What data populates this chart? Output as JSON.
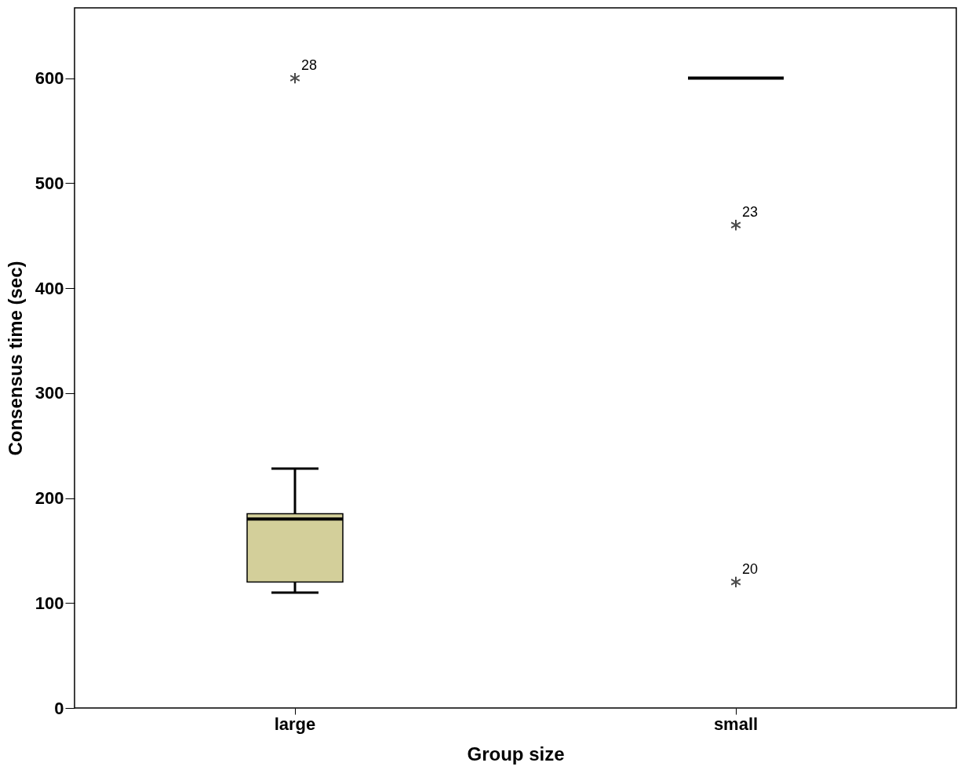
{
  "chart_data": {
    "type": "box",
    "xlabel": "Group size",
    "ylabel": "Consensus time (sec)",
    "categories": [
      "large",
      "small"
    ],
    "boxes": [
      {
        "low": 110,
        "q1": 120,
        "median": 180,
        "q3": 185,
        "high": 228,
        "outliers": [
          600
        ]
      },
      {
        "low": 600,
        "q1": 600,
        "median": 600,
        "q3": 600,
        "high": 600,
        "outliers": [
          460,
          120
        ]
      }
    ],
    "color": "#d3cf9a",
    "marker": "star",
    "grid": false,
    "ylim": [
      0,
      667
    ],
    "yticks": [
      0,
      100,
      200,
      300,
      400,
      500,
      600
    ],
    "annotations": [
      "28",
      "23",
      "20"
    ]
  }
}
